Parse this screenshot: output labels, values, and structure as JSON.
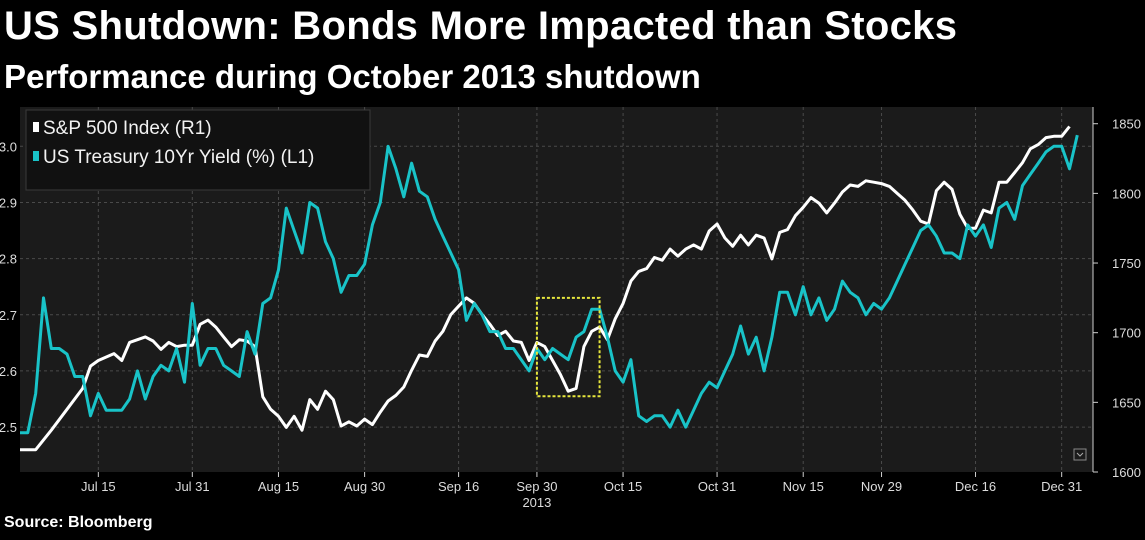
{
  "header": {
    "title": "US Shutdown: Bonds More Impacted than Stocks",
    "subtitle": "Performance during October 2013 shutdown"
  },
  "footer": {
    "source": "Source: Bloomberg"
  },
  "colors": {
    "background": "#1b1b1b",
    "grid": "#4a4a4a",
    "sp500": "#ffffff",
    "yield": "#19c3c8",
    "highlight": "#e6e63c"
  },
  "chart_data": {
    "type": "line",
    "title": "US Shutdown: Bonds More Impacted than Stocks",
    "subtitle": "Performance during October 2013 shutdown",
    "xlabel": "2013",
    "x_tick_labels": [
      "Jul 15",
      "Jul 31",
      "Aug 15",
      "Aug 30",
      "Sep 16",
      "Sep 30",
      "Oct 15",
      "Oct 31",
      "Nov 15",
      "Nov 29",
      "Dec 16",
      "Dec 31"
    ],
    "x_tick_positions": [
      10,
      22,
      33,
      44,
      56,
      66,
      77,
      89,
      100,
      110,
      122,
      133
    ],
    "x_range": [
      0,
      137
    ],
    "y_left": {
      "label": "",
      "range": [
        2.42,
        3.07
      ],
      "ticks": [
        2.5,
        2.6,
        2.7,
        2.8,
        2.9,
        3.0
      ]
    },
    "y_right": {
      "label": "",
      "range": [
        1600,
        1862
      ],
      "ticks": [
        1600,
        1650,
        1700,
        1750,
        1800,
        1850
      ]
    },
    "legend": {
      "position": "top-left",
      "entries": [
        "S&P 500 Index (R1)",
        "US Treasury 10Yr Yield (%) (L1)"
      ]
    },
    "highlight_box": {
      "x_range": [
        66,
        74
      ],
      "y_left_range": [
        2.555,
        2.73
      ]
    },
    "series": [
      {
        "name": "S&P 500 Index (R1)",
        "axis": "R1",
        "points": [
          [
            0,
            1616
          ],
          [
            2,
            1616
          ],
          [
            4,
            1630
          ],
          [
            6,
            1645
          ],
          [
            8,
            1660
          ],
          [
            9,
            1676
          ],
          [
            10,
            1680
          ],
          [
            12,
            1685
          ],
          [
            13,
            1680
          ],
          [
            14,
            1693
          ],
          [
            16,
            1697
          ],
          [
            17,
            1694
          ],
          [
            18,
            1688
          ],
          [
            19,
            1693
          ],
          [
            20,
            1690
          ],
          [
            21,
            1691
          ],
          [
            22,
            1691
          ],
          [
            23,
            1706
          ],
          [
            24,
            1709
          ],
          [
            25,
            1704
          ],
          [
            26,
            1697
          ],
          [
            27,
            1690
          ],
          [
            28,
            1695
          ],
          [
            29,
            1694
          ],
          [
            30,
            1690
          ],
          [
            31,
            1654
          ],
          [
            32,
            1645
          ],
          [
            33,
            1640
          ],
          [
            34,
            1632
          ],
          [
            35,
            1640
          ],
          [
            36,
            1630
          ],
          [
            37,
            1652
          ],
          [
            38,
            1645
          ],
          [
            39,
            1658
          ],
          [
            40,
            1652
          ],
          [
            41,
            1633
          ],
          [
            42,
            1636
          ],
          [
            43,
            1633
          ],
          [
            44,
            1638
          ],
          [
            45,
            1634
          ],
          [
            46,
            1643
          ],
          [
            47,
            1651
          ],
          [
            48,
            1655
          ],
          [
            49,
            1661
          ],
          [
            50,
            1673
          ],
          [
            51,
            1684
          ],
          [
            52,
            1683
          ],
          [
            53,
            1694
          ],
          [
            54,
            1701
          ],
          [
            55,
            1713
          ],
          [
            56,
            1719
          ],
          [
            57,
            1725
          ],
          [
            58,
            1721
          ],
          [
            59,
            1713
          ],
          [
            60,
            1706
          ],
          [
            61,
            1698
          ],
          [
            62,
            1701
          ],
          [
            63,
            1694
          ],
          [
            64,
            1693
          ],
          [
            65,
            1680
          ],
          [
            66,
            1693
          ],
          [
            67,
            1690
          ],
          [
            68,
            1680
          ],
          [
            69,
            1670
          ],
          [
            70,
            1658
          ],
          [
            71,
            1660
          ],
          [
            72,
            1690
          ],
          [
            73,
            1701
          ],
          [
            74,
            1704
          ],
          [
            75,
            1695
          ],
          [
            76,
            1710
          ],
          [
            77,
            1721
          ],
          [
            78,
            1737
          ],
          [
            79,
            1744
          ],
          [
            80,
            1746
          ],
          [
            81,
            1754
          ],
          [
            82,
            1752
          ],
          [
            83,
            1760
          ],
          [
            84,
            1755
          ],
          [
            85,
            1760
          ],
          [
            86,
            1763
          ],
          [
            87,
            1760
          ],
          [
            88,
            1773
          ],
          [
            89,
            1778
          ],
          [
            90,
            1768
          ],
          [
            91,
            1762
          ],
          [
            92,
            1770
          ],
          [
            93,
            1763
          ],
          [
            94,
            1770
          ],
          [
            95,
            1768
          ],
          [
            96,
            1753
          ],
          [
            97,
            1772
          ],
          [
            98,
            1774
          ],
          [
            99,
            1784
          ],
          [
            100,
            1790
          ],
          [
            101,
            1797
          ],
          [
            102,
            1793
          ],
          [
            103,
            1786
          ],
          [
            104,
            1793
          ],
          [
            105,
            1801
          ],
          [
            106,
            1806
          ],
          [
            107,
            1805
          ],
          [
            108,
            1809
          ],
          [
            109,
            1808
          ],
          [
            110,
            1807
          ],
          [
            111,
            1805
          ],
          [
            112,
            1800
          ],
          [
            113,
            1795
          ],
          [
            114,
            1788
          ],
          [
            115,
            1780
          ],
          [
            116,
            1778
          ],
          [
            117,
            1802
          ],
          [
            118,
            1808
          ],
          [
            119,
            1803
          ],
          [
            120,
            1785
          ],
          [
            121,
            1775
          ],
          [
            122,
            1775
          ],
          [
            123,
            1788
          ],
          [
            124,
            1786
          ],
          [
            125,
            1808
          ],
          [
            126,
            1808
          ],
          [
            127,
            1815
          ],
          [
            128,
            1822
          ],
          [
            129,
            1832
          ],
          [
            130,
            1835
          ],
          [
            131,
            1840
          ],
          [
            132,
            1841
          ],
          [
            133,
            1841
          ],
          [
            134,
            1848
          ]
        ]
      },
      {
        "name": "US Treasury 10Yr Yield (%) (L1)",
        "axis": "L1",
        "points": [
          [
            0,
            2.49
          ],
          [
            1,
            2.49
          ],
          [
            2,
            2.56
          ],
          [
            3,
            2.73
          ],
          [
            4,
            2.64
          ],
          [
            5,
            2.64
          ],
          [
            6,
            2.63
          ],
          [
            7,
            2.59
          ],
          [
            8,
            2.59
          ],
          [
            9,
            2.52
          ],
          [
            10,
            2.56
          ],
          [
            11,
            2.53
          ],
          [
            12,
            2.53
          ],
          [
            13,
            2.53
          ],
          [
            14,
            2.55
          ],
          [
            15,
            2.6
          ],
          [
            16,
            2.55
          ],
          [
            17,
            2.59
          ],
          [
            18,
            2.61
          ],
          [
            19,
            2.6
          ],
          [
            20,
            2.64
          ],
          [
            21,
            2.58
          ],
          [
            22,
            2.72
          ],
          [
            23,
            2.61
          ],
          [
            24,
            2.64
          ],
          [
            25,
            2.64
          ],
          [
            26,
            2.61
          ],
          [
            27,
            2.6
          ],
          [
            28,
            2.59
          ],
          [
            29,
            2.67
          ],
          [
            30,
            2.63
          ],
          [
            31,
            2.72
          ],
          [
            32,
            2.73
          ],
          [
            33,
            2.78
          ],
          [
            34,
            2.89
          ],
          [
            35,
            2.85
          ],
          [
            36,
            2.81
          ],
          [
            37,
            2.9
          ],
          [
            38,
            2.89
          ],
          [
            39,
            2.83
          ],
          [
            40,
            2.8
          ],
          [
            41,
            2.74
          ],
          [
            42,
            2.77
          ],
          [
            43,
            2.77
          ],
          [
            44,
            2.79
          ],
          [
            45,
            2.86
          ],
          [
            46,
            2.9
          ],
          [
            47,
            3.0
          ],
          [
            48,
            2.96
          ],
          [
            49,
            2.91
          ],
          [
            50,
            2.97
          ],
          [
            51,
            2.92
          ],
          [
            52,
            2.91
          ],
          [
            53,
            2.87
          ],
          [
            54,
            2.84
          ],
          [
            55,
            2.81
          ],
          [
            56,
            2.78
          ],
          [
            57,
            2.69
          ],
          [
            58,
            2.72
          ],
          [
            59,
            2.7
          ],
          [
            60,
            2.67
          ],
          [
            61,
            2.67
          ],
          [
            62,
            2.64
          ],
          [
            63,
            2.64
          ],
          [
            64,
            2.62
          ],
          [
            65,
            2.6
          ],
          [
            66,
            2.64
          ],
          [
            67,
            2.62
          ],
          [
            68,
            2.64
          ],
          [
            69,
            2.63
          ],
          [
            70,
            2.62
          ],
          [
            71,
            2.66
          ],
          [
            72,
            2.67
          ],
          [
            73,
            2.71
          ],
          [
            74,
            2.71
          ],
          [
            75,
            2.66
          ],
          [
            76,
            2.6
          ],
          [
            77,
            2.58
          ],
          [
            78,
            2.62
          ],
          [
            79,
            2.52
          ],
          [
            80,
            2.51
          ],
          [
            81,
            2.52
          ],
          [
            82,
            2.52
          ],
          [
            83,
            2.5
          ],
          [
            84,
            2.53
          ],
          [
            85,
            2.5
          ],
          [
            86,
            2.53
          ],
          [
            87,
            2.56
          ],
          [
            88,
            2.58
          ],
          [
            89,
            2.57
          ],
          [
            90,
            2.6
          ],
          [
            91,
            2.63
          ],
          [
            92,
            2.68
          ],
          [
            93,
            2.63
          ],
          [
            94,
            2.66
          ],
          [
            95,
            2.6
          ],
          [
            96,
            2.66
          ],
          [
            97,
            2.74
          ],
          [
            98,
            2.74
          ],
          [
            99,
            2.7
          ],
          [
            100,
            2.75
          ],
          [
            101,
            2.7
          ],
          [
            102,
            2.73
          ],
          [
            103,
            2.69
          ],
          [
            104,
            2.71
          ],
          [
            105,
            2.76
          ],
          [
            106,
            2.74
          ],
          [
            107,
            2.73
          ],
          [
            108,
            2.7
          ],
          [
            109,
            2.72
          ],
          [
            110,
            2.71
          ],
          [
            111,
            2.73
          ],
          [
            112,
            2.76
          ],
          [
            113,
            2.79
          ],
          [
            114,
            2.82
          ],
          [
            115,
            2.85
          ],
          [
            116,
            2.86
          ],
          [
            117,
            2.84
          ],
          [
            118,
            2.81
          ],
          [
            119,
            2.81
          ],
          [
            120,
            2.8
          ],
          [
            121,
            2.86
          ],
          [
            122,
            2.84
          ],
          [
            123,
            2.86
          ],
          [
            124,
            2.82
          ],
          [
            125,
            2.89
          ],
          [
            126,
            2.9
          ],
          [
            127,
            2.87
          ],
          [
            128,
            2.93
          ],
          [
            129,
            2.95
          ],
          [
            130,
            2.97
          ],
          [
            131,
            2.99
          ],
          [
            132,
            3.0
          ],
          [
            133,
            3.0
          ],
          [
            134,
            2.96
          ],
          [
            135,
            3.02
          ]
        ]
      }
    ]
  }
}
